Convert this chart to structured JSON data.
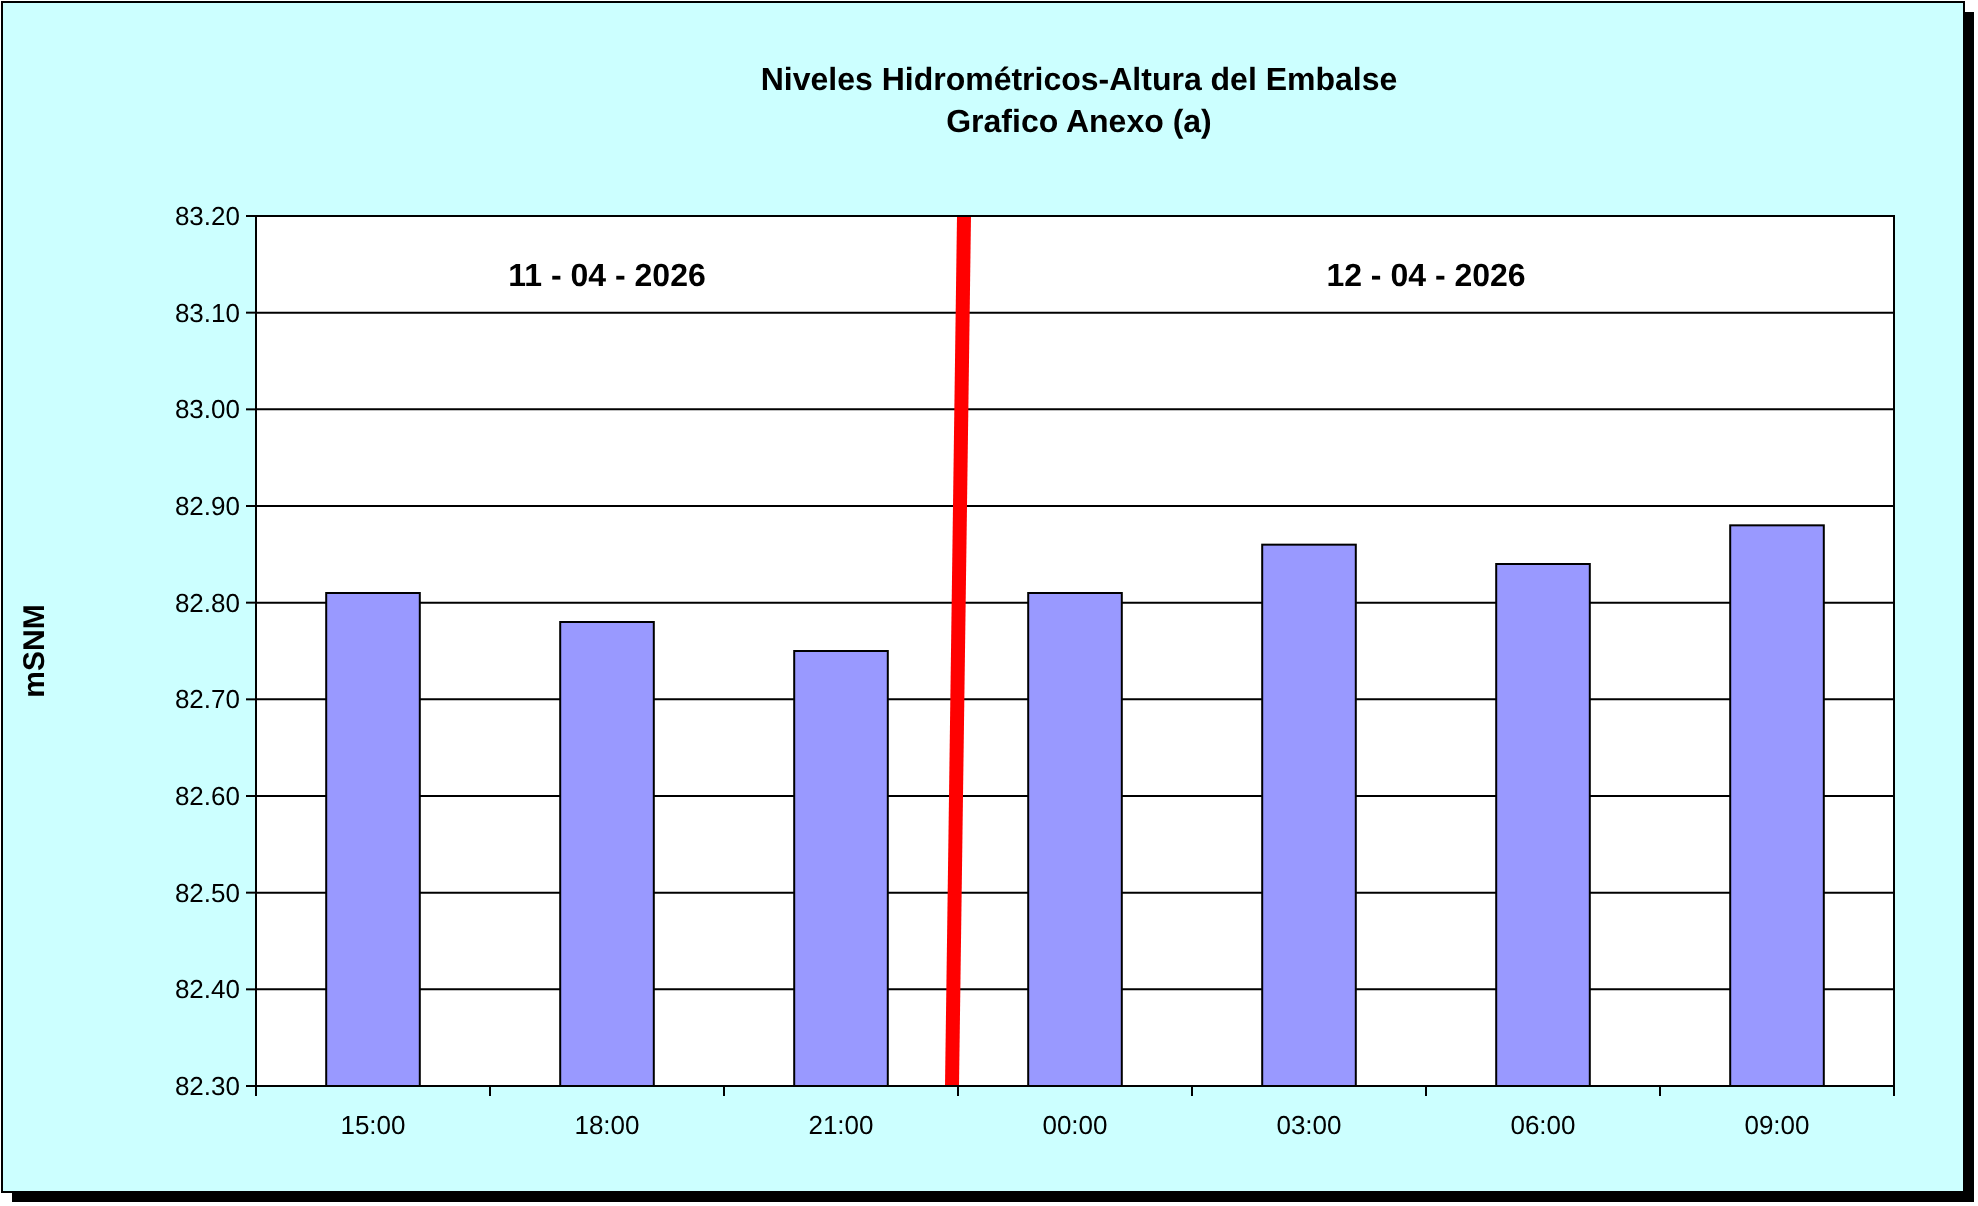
{
  "chart_data": {
    "type": "bar",
    "title": "Niveles Hidrométricos-Altura del Embalse",
    "subtitle": "Grafico Anexo (a)",
    "ylabel": "mSNM",
    "categories": [
      "15:00",
      "18:00",
      "21:00",
      "00:00",
      "03:00",
      "06:00",
      "09:00"
    ],
    "values": [
      82.81,
      82.78,
      82.75,
      82.81,
      82.86,
      82.84,
      82.88
    ],
    "color": "#9999ff",
    "ylim": [
      82.3,
      83.2
    ],
    "yticks": [
      {
        "value": 82.3,
        "label": "82.30"
      },
      {
        "value": 82.4,
        "label": "82.40"
      },
      {
        "value": 82.5,
        "label": "82.50"
      },
      {
        "value": 82.6,
        "label": "82.60"
      },
      {
        "value": 82.7,
        "label": "82.70"
      },
      {
        "value": 82.8,
        "label": "82.80"
      },
      {
        "value": 82.9,
        "label": "82.90"
      },
      {
        "value": 83.0,
        "label": "83.00"
      },
      {
        "value": 83.1,
        "label": "83.10"
      },
      {
        "value": 83.2,
        "label": "83.20"
      }
    ],
    "grid": "y",
    "annotations": [
      "11 - 04 - 2026",
      "12 - 04 - 2026"
    ]
  }
}
